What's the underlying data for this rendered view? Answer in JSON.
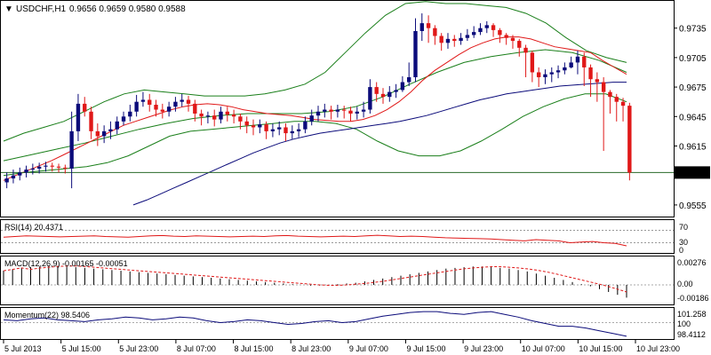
{
  "header": {
    "symbol": "USDCHF,H1",
    "ohlc": "0.9656 0.9659 0.9580 0.9588"
  },
  "panels": {
    "rsi": {
      "label": "RSI(14) 20.4371",
      "levels": [
        "70",
        "30",
        "0"
      ]
    },
    "macd": {
      "label": "MACD(12,26,9) -0.00165 -0.00051",
      "levels": [
        "0.00276",
        "0.00",
        "-0.00186"
      ]
    },
    "momentum": {
      "label": "Momentum(22) 98.5406",
      "levels": [
        "101.258",
        "100",
        "98.4112"
      ]
    }
  },
  "colors": {
    "bull": "#0b0b7a",
    "bear": "#e01818",
    "bollinger": "#1a7f1a",
    "ma_red": "#e01818",
    "ma_blue": "#0b0b7a",
    "current_price_line": "#2a6a2a"
  },
  "chart_data": {
    "type": "candlestick",
    "price_axis": {
      "ticks": [
        "0.9735",
        "0.9705",
        "0.9675",
        "0.9645",
        "0.9615",
        "0.9555"
      ],
      "current": "0.9588",
      "range": [
        0.9545,
        0.976
      ]
    },
    "time_axis": [
      "5 Jul 2013",
      "5 Jul 15:00",
      "5 Jul 23:00",
      "8 Jul 07:00",
      "8 Jul 15:00",
      "8 Jul 23:00",
      "9 Jul 07:00",
      "9 Jul 15:00",
      "9 Jul 23:00",
      "10 Jul 07:00",
      "10 Jul 15:00",
      "10 Jul 23:00"
    ],
    "candles_close": [
      0.9582,
      0.9585,
      0.9588,
      0.9591,
      0.9592,
      0.9594,
      0.9595,
      0.9594,
      0.9593,
      0.9592,
      0.963,
      0.9658,
      0.965,
      0.963,
      0.9625,
      0.963,
      0.9632,
      0.964,
      0.9645,
      0.965,
      0.966,
      0.9662,
      0.9657,
      0.9652,
      0.965,
      0.9655,
      0.966,
      0.9662,
      0.9658,
      0.9648,
      0.9645,
      0.9646,
      0.9642,
      0.965,
      0.9647,
      0.9645,
      0.964,
      0.9636,
      0.9634,
      0.9637,
      0.963,
      0.9632,
      0.9634,
      0.9628,
      0.963,
      0.9632,
      0.964,
      0.9646,
      0.965,
      0.9652,
      0.965,
      0.9652,
      0.9651,
      0.9648,
      0.965,
      0.9652,
      0.9675,
      0.9668,
      0.9665,
      0.967,
      0.9672,
      0.968,
      0.9685,
      0.9732,
      0.974,
      0.9735,
      0.9727,
      0.972,
      0.9724,
      0.9722,
      0.9725,
      0.9728,
      0.9731,
      0.9735,
      0.9738,
      0.9733,
      0.9728,
      0.9725,
      0.9722,
      0.9715,
      0.971,
      0.969,
      0.9685,
      0.9688,
      0.969,
      0.9692,
      0.9695,
      0.97,
      0.9706,
      0.9695,
      0.9683,
      0.968,
      0.967,
      0.9665,
      0.966,
      0.9656,
      0.9588
    ],
    "candles_open": [
      0.9578,
      0.9582,
      0.9585,
      0.9588,
      0.9591,
      0.9592,
      0.9594,
      0.9595,
      0.9594,
      0.9593,
      0.9592,
      0.963,
      0.9658,
      0.965,
      0.963,
      0.9625,
      0.963,
      0.9632,
      0.964,
      0.9645,
      0.965,
      0.966,
      0.9662,
      0.9657,
      0.9652,
      0.965,
      0.9655,
      0.966,
      0.9662,
      0.9658,
      0.9648,
      0.9645,
      0.9646,
      0.9642,
      0.965,
      0.9647,
      0.9645,
      0.964,
      0.9636,
      0.9634,
      0.9637,
      0.963,
      0.9632,
      0.9634,
      0.9628,
      0.963,
      0.9632,
      0.964,
      0.9646,
      0.965,
      0.9652,
      0.965,
      0.9652,
      0.9651,
      0.9648,
      0.965,
      0.9652,
      0.9675,
      0.9668,
      0.9665,
      0.967,
      0.9672,
      0.968,
      0.9685,
      0.9732,
      0.974,
      0.9735,
      0.9727,
      0.972,
      0.9724,
      0.9722,
      0.9725,
      0.9728,
      0.9731,
      0.9735,
      0.9738,
      0.9733,
      0.9728,
      0.9725,
      0.9722,
      0.9715,
      0.971,
      0.969,
      0.9685,
      0.9688,
      0.969,
      0.9692,
      0.9695,
      0.97,
      0.9706,
      0.9695,
      0.9683,
      0.968,
      0.967,
      0.9665,
      0.966,
      0.9656
    ],
    "candles_high": [
      0.9588,
      0.9591,
      0.9593,
      0.9595,
      0.9597,
      0.9598,
      0.9599,
      0.9598,
      0.9597,
      0.9596,
      0.965,
      0.9668,
      0.9665,
      0.9655,
      0.9638,
      0.9636,
      0.964,
      0.9645,
      0.965,
      0.9657,
      0.9667,
      0.967,
      0.9668,
      0.9662,
      0.9658,
      0.966,
      0.9665,
      0.9668,
      0.9666,
      0.9662,
      0.9652,
      0.965,
      0.9652,
      0.9655,
      0.9655,
      0.9652,
      0.9648,
      0.9645,
      0.9642,
      0.9642,
      0.964,
      0.9638,
      0.964,
      0.9638,
      0.9636,
      0.9638,
      0.9645,
      0.9652,
      0.9656,
      0.9658,
      0.9656,
      0.9657,
      0.9656,
      0.9655,
      0.9655,
      0.966,
      0.9683,
      0.968,
      0.9674,
      0.9676,
      0.9678,
      0.9686,
      0.97,
      0.9745,
      0.975,
      0.9748,
      0.9738,
      0.973,
      0.973,
      0.9728,
      0.973,
      0.9734,
      0.9737,
      0.974,
      0.9742,
      0.974,
      0.9735,
      0.973,
      0.9728,
      0.9724,
      0.9718,
      0.9712,
      0.9695,
      0.9693,
      0.9695,
      0.9697,
      0.97,
      0.9706,
      0.9712,
      0.971,
      0.9698,
      0.969,
      0.9685,
      0.9672,
      0.9668,
      0.9664,
      0.9659
    ],
    "candles_low": [
      0.9572,
      0.9577,
      0.958,
      0.9583,
      0.9586,
      0.9587,
      0.9589,
      0.9589,
      0.9588,
      0.9587,
      0.9572,
      0.962,
      0.9645,
      0.9622,
      0.9615,
      0.9618,
      0.9622,
      0.9627,
      0.9636,
      0.964,
      0.9645,
      0.9655,
      0.965,
      0.9645,
      0.9643,
      0.9645,
      0.965,
      0.9655,
      0.965,
      0.964,
      0.9636,
      0.9638,
      0.9635,
      0.9638,
      0.964,
      0.9638,
      0.9632,
      0.9628,
      0.9626,
      0.9628,
      0.9622,
      0.9624,
      0.9626,
      0.962,
      0.9622,
      0.9624,
      0.9628,
      0.9636,
      0.964,
      0.9644,
      0.9642,
      0.9644,
      0.9643,
      0.964,
      0.9642,
      0.9644,
      0.9648,
      0.966,
      0.9658,
      0.966,
      0.9664,
      0.967,
      0.9676,
      0.968,
      0.9722,
      0.972,
      0.9718,
      0.9712,
      0.9714,
      0.9716,
      0.9718,
      0.9722,
      0.9725,
      0.9728,
      0.973,
      0.9726,
      0.972,
      0.9718,
      0.9714,
      0.9706,
      0.9685,
      0.968,
      0.9675,
      0.9678,
      0.968,
      0.9684,
      0.9688,
      0.9694,
      0.9688,
      0.9676,
      0.9665,
      0.966,
      0.961,
      0.9648,
      0.964,
      0.964,
      0.958
    ],
    "indicators": {
      "ma_red": [
        0.958,
        0.9585,
        0.959,
        0.9595,
        0.96,
        0.9606,
        0.9612,
        0.9618,
        0.9624,
        0.963,
        0.9636,
        0.964,
        0.9644,
        0.9648,
        0.9652,
        0.9655,
        0.9657,
        0.9658,
        0.9657,
        0.9655,
        0.9652,
        0.965,
        0.9648,
        0.9647,
        0.9646,
        0.9644,
        0.9642,
        0.9641,
        0.964,
        0.964,
        0.9642,
        0.9646,
        0.9652,
        0.966,
        0.967,
        0.9682,
        0.9692,
        0.97,
        0.9708,
        0.9715,
        0.972,
        0.9724,
        0.9726,
        0.9726,
        0.9724,
        0.972,
        0.9716,
        0.9714,
        0.9712,
        0.971,
        0.9702,
        0.9695,
        0.9688
      ],
      "ma_blue": [
        0.9555,
        0.956,
        0.9566,
        0.9572,
        0.9578,
        0.9584,
        0.959,
        0.9596,
        0.9602,
        0.9608,
        0.9613,
        0.9618,
        0.9622,
        0.9625,
        0.9628,
        0.963,
        0.9632,
        0.9634,
        0.9636,
        0.9638,
        0.964,
        0.9643,
        0.9646,
        0.965,
        0.9654,
        0.9658,
        0.9662,
        0.9665,
        0.9668,
        0.967,
        0.9672,
        0.9674,
        0.9676,
        0.9677,
        0.9678,
        0.9679,
        0.968,
        0.968
      ],
      "bollinger_upper": [
        0.962,
        0.9628,
        0.9634,
        0.964,
        0.965,
        0.966,
        0.9668,
        0.9672,
        0.967,
        0.9668,
        0.9666,
        0.9666,
        0.9666,
        0.9668,
        0.9672,
        0.9678,
        0.969,
        0.971,
        0.973,
        0.9748,
        0.976,
        0.9762,
        0.976,
        0.976,
        0.9758,
        0.9756,
        0.975,
        0.974,
        0.9725,
        0.9712,
        0.9705,
        0.97
      ],
      "bollinger_lower": [
        0.9585,
        0.9588,
        0.959,
        0.9592,
        0.9594,
        0.9598,
        0.9605,
        0.9615,
        0.9625,
        0.963,
        0.9632,
        0.9634,
        0.9636,
        0.9638,
        0.964,
        0.964,
        0.9638,
        0.9632,
        0.962,
        0.961,
        0.9605,
        0.9605,
        0.961,
        0.962,
        0.9632,
        0.9645,
        0.9655,
        0.9663,
        0.9668,
        0.9668,
        0.966
      ],
      "bollinger_middle": [
        0.96,
        0.9606,
        0.9612,
        0.9618,
        0.9625,
        0.9632,
        0.9638,
        0.9643,
        0.9646,
        0.9648,
        0.9648,
        0.9648,
        0.965,
        0.9655,
        0.9665,
        0.9678,
        0.969,
        0.97,
        0.9706,
        0.971,
        0.9713,
        0.971,
        0.9702,
        0.969
      ]
    },
    "rsi": [
      48,
      50,
      52,
      51,
      50,
      49,
      50,
      51,
      52,
      50,
      49,
      48,
      50,
      52,
      53,
      51,
      50,
      52,
      51,
      50,
      49,
      50,
      51,
      50,
      52,
      53,
      51,
      50,
      49,
      50,
      51,
      50,
      52,
      54,
      52,
      50,
      51,
      50,
      48,
      46,
      45,
      44,
      43,
      42,
      40,
      38,
      36,
      40,
      38,
      36,
      30,
      32,
      34,
      30,
      28,
      20
    ],
    "macd_hist": [
      0.002,
      0.0022,
      0.0024,
      0.0025,
      0.0026,
      0.0027,
      0.0027,
      0.0026,
      0.0025,
      0.0024,
      0.0023,
      0.0022,
      0.0021,
      0.002,
      0.0019,
      0.0018,
      0.0017,
      0.0016,
      0.0015,
      0.0014,
      0.0013,
      0.0012,
      0.0011,
      0.001,
      0.0009,
      0.0008,
      0.0007,
      0.0006,
      0.0005,
      0.0004,
      0.0003,
      0.0002,
      0.0001,
      0.0,
      -0.0001,
      -0.0001,
      0.0,
      0.0001,
      0.0002,
      0.0003,
      0.0005,
      0.0007,
      0.0009,
      0.0011,
      0.0013,
      0.0015,
      0.0017,
      0.0019,
      0.0021,
      0.0023,
      0.0024,
      0.0025,
      0.0026,
      0.0026,
      0.0025,
      0.0024,
      0.0023,
      0.0021,
      0.0019,
      0.0016,
      0.0013,
      0.001,
      0.0007,
      0.0004,
      0.0001,
      -0.0002,
      -0.0006,
      -0.001,
      -0.0014,
      -0.0018
    ],
    "momentum": [
      100.3,
      100.2,
      100.4,
      100.5,
      100.3,
      100.2,
      100.1,
      100.3,
      100.4,
      100.6,
      100.5,
      100.3,
      100.4,
      100.6,
      100.5,
      100.2,
      100.0,
      100.1,
      100.3,
      100.2,
      100.0,
      99.8,
      99.9,
      100.1,
      100.2,
      100.0,
      100.1,
      100.4,
      100.7,
      100.9,
      101.1,
      101.2,
      101.2,
      101.0,
      100.9,
      101.1,
      101.2,
      100.9,
      100.6,
      100.2,
      99.9,
      99.6,
      99.6,
      99.4,
      99.1,
      98.8,
      98.5
    ]
  }
}
